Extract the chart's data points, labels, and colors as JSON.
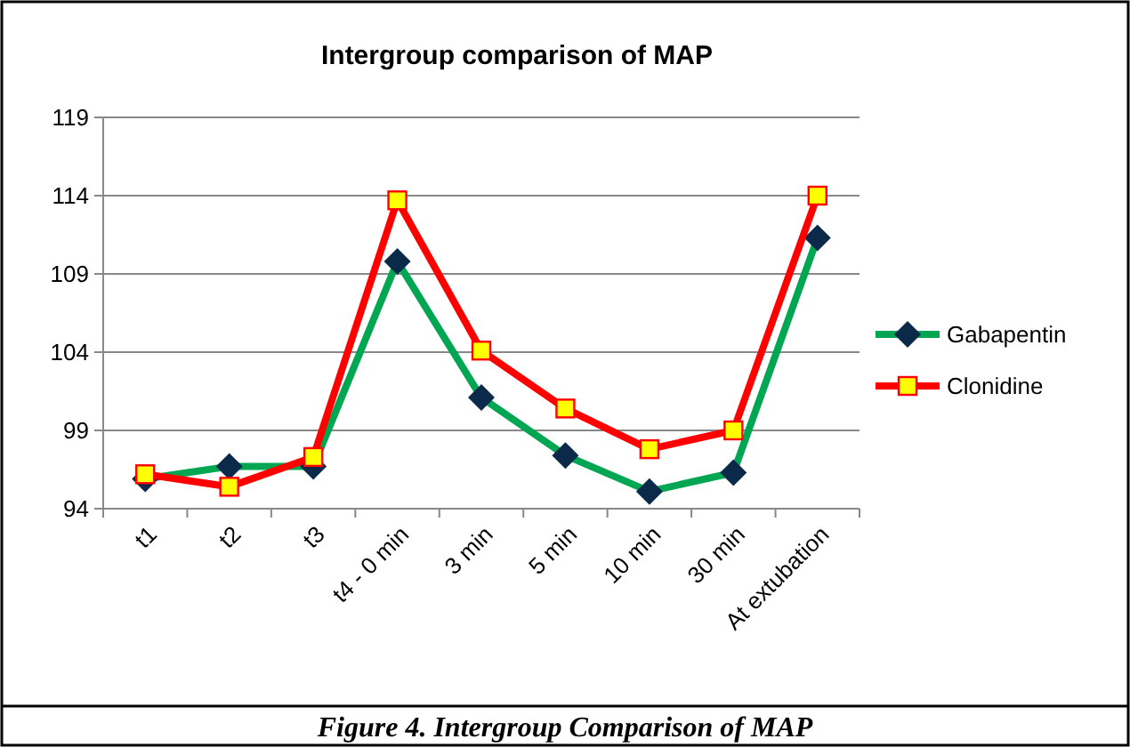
{
  "chart_data": {
    "type": "line",
    "title": "Intergroup comparison of MAP",
    "categories": [
      "t1",
      "t2",
      "t3",
      "t4 - 0 min",
      "3 min",
      "5 min",
      "10 min",
      "30 min",
      "At extubation"
    ],
    "series": [
      {
        "name": "Gabapentin",
        "color": "#00a651",
        "marker": "diamond",
        "values": [
          95.9,
          96.7,
          96.7,
          109.8,
          101.1,
          97.4,
          95.1,
          96.3,
          111.3
        ]
      },
      {
        "name": "Clonidine",
        "color": "#ff0000",
        "marker": "square",
        "values": [
          96.2,
          95.4,
          97.3,
          113.7,
          104.1,
          100.4,
          97.8,
          99.0,
          114.0
        ]
      }
    ],
    "ylim": [
      94,
      119
    ],
    "yticks": [
      94,
      99,
      104,
      109,
      114,
      119
    ],
    "grid": "y",
    "legend": "right",
    "annotations": [
      "Figure 4. Intergroup Comparison of MAP"
    ]
  }
}
